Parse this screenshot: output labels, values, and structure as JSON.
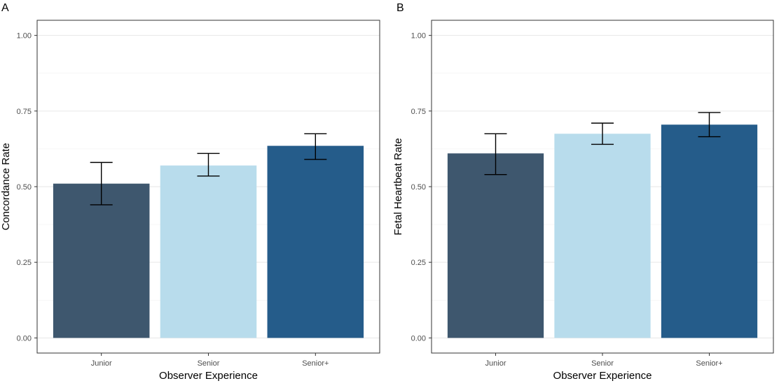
{
  "chart_data": [
    {
      "type": "bar",
      "panel_label": "A",
      "categories": [
        "Junior",
        "Senior",
        "Senior+"
      ],
      "values": [
        0.51,
        0.57,
        0.635
      ],
      "error_low": [
        0.44,
        0.535,
        0.59
      ],
      "error_high": [
        0.58,
        0.61,
        0.675
      ],
      "colors": [
        "#3e576e",
        "#b8dcec",
        "#255c8a"
      ],
      "xlabel": "Observer Experience",
      "ylabel": "Concordance Rate",
      "ylim": [
        0,
        1.05
      ],
      "yticks": [
        "0.00",
        "0.25",
        "0.50",
        "0.75",
        "1.00"
      ],
      "grid": true
    },
    {
      "type": "bar",
      "panel_label": "B",
      "categories": [
        "Junior",
        "Senior",
        "Senior+"
      ],
      "values": [
        0.61,
        0.675,
        0.705
      ],
      "error_low": [
        0.54,
        0.64,
        0.665
      ],
      "error_high": [
        0.675,
        0.71,
        0.745
      ],
      "colors": [
        "#3e576e",
        "#b8dcec",
        "#255c8a"
      ],
      "xlabel": "Observer Experience",
      "ylabel": "Fetal Heartbeat Rate",
      "ylim": [
        0,
        1.05
      ],
      "yticks": [
        "0.00",
        "0.25",
        "0.50",
        "0.75",
        "1.00"
      ],
      "grid": true
    }
  ]
}
